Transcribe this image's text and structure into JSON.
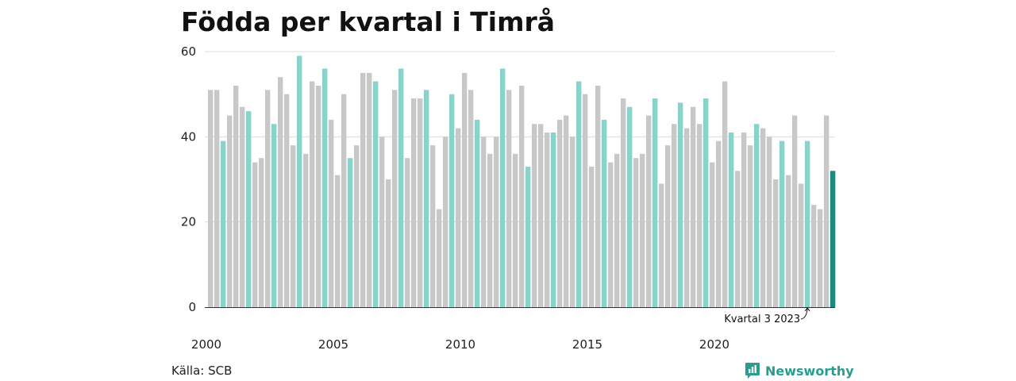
{
  "header": {
    "title": "Födda per kvartal i Timrå"
  },
  "footer": {
    "source": "Källa: SCB",
    "brand": "Newsworthy"
  },
  "colors": {
    "default_bar": "#c8c8c8",
    "q3_bar": "#88d3cb",
    "latest_bar": "#1a8c7f",
    "grid": "#dddddd",
    "axis": "#333333",
    "brand": "#2a9d8f"
  },
  "icons": {
    "logo": "bar-chart-bubble-icon",
    "annotation": "curved-arrow-icon"
  },
  "chart_data": {
    "type": "bar",
    "title": "Födda per kvartal i Timrå",
    "xlabel": "",
    "ylabel": "",
    "ylim": [
      0,
      60
    ],
    "yticks": [
      0,
      20,
      40,
      60
    ],
    "xticks": [
      "2000",
      "2005",
      "2010",
      "2015",
      "2020"
    ],
    "grid": true,
    "start_year": 2000,
    "highlight_quarter": 3,
    "values": [
      51,
      51,
      39,
      45,
      52,
      47,
      46,
      34,
      35,
      51,
      43,
      54,
      50,
      38,
      59,
      36,
      53,
      52,
      56,
      44,
      31,
      50,
      35,
      38,
      55,
      55,
      53,
      40,
      30,
      51,
      56,
      35,
      49,
      49,
      51,
      38,
      23,
      40,
      50,
      42,
      55,
      51,
      44,
      40,
      36,
      40,
      56,
      51,
      36,
      52,
      33,
      43,
      43,
      41,
      41,
      44,
      45,
      40,
      53,
      50,
      33,
      52,
      44,
      34,
      36,
      49,
      47,
      35,
      36,
      45,
      49,
      29,
      38,
      43,
      48,
      42,
      47,
      43,
      49,
      34,
      39,
      53,
      41,
      32,
      41,
      38,
      43,
      42,
      40,
      30,
      39,
      31,
      45,
      29,
      39,
      24,
      23,
      45,
      32
    ],
    "annotation": {
      "text": "Kvartal 3 2023"
    }
  }
}
